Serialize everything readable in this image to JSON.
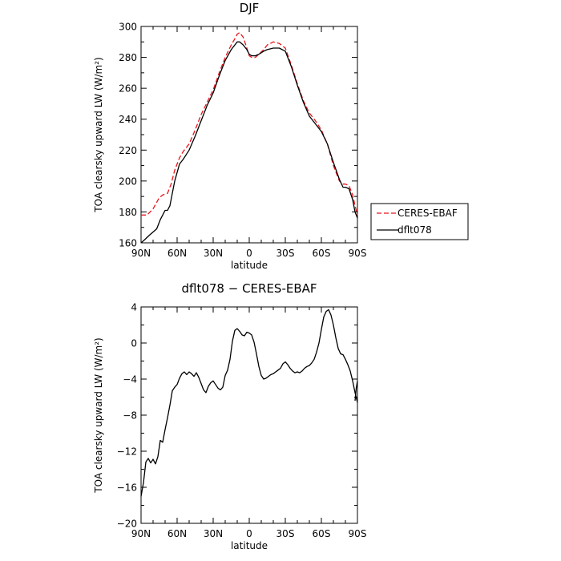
{
  "chart_data": [
    {
      "type": "line",
      "title": "DJF",
      "xlabel": "latitude",
      "ylabel": "TOA clearsky upward LW (W/m²)",
      "ylim": [
        160,
        300
      ],
      "xlim": [
        90,
        -90
      ],
      "grid": false,
      "legend_position": "right",
      "x_ticks": [
        90,
        60,
        30,
        0,
        -30,
        -60,
        -90
      ],
      "x_tick_labels": [
        "90N",
        "60N",
        "30N",
        "0",
        "30S",
        "60S",
        "90S"
      ],
      "y_ticks": [
        160,
        180,
        200,
        220,
        240,
        260,
        280,
        300
      ],
      "y_tick_labels": [
        "160",
        "180",
        "200",
        "220",
        "240",
        "260",
        "280",
        "300"
      ],
      "series": [
        {
          "name": "CERES-EBAF",
          "color": "#e8141c",
          "dash": "dashed",
          "x": [
            90,
            85,
            80,
            75,
            72,
            68,
            65,
            62,
            58,
            55,
            50,
            45,
            40,
            35,
            30,
            25,
            20,
            15,
            12,
            10,
            8,
            5,
            2,
            0,
            -2,
            -5,
            -8,
            -12,
            -15,
            -20,
            -25,
            -30,
            -35,
            -40,
            -45,
            -50,
            -55,
            -60,
            -65,
            -70,
            -75,
            -78,
            -80,
            -83,
            -86,
            -88,
            -90
          ],
          "y": [
            178,
            178,
            182,
            189,
            191,
            192,
            198,
            207,
            215,
            219,
            224,
            233,
            243,
            251,
            259,
            270,
            280,
            288,
            292,
            295,
            296,
            293,
            286,
            281,
            280,
            280,
            282,
            285,
            288,
            290,
            289,
            286,
            275,
            263,
            252,
            244,
            239,
            233,
            224,
            210,
            200,
            198,
            198,
            197,
            191,
            184,
            178
          ]
        },
        {
          "name": "dflt078",
          "color": "#000000",
          "dash": "solid",
          "x": [
            90,
            87,
            83,
            80,
            77,
            74,
            72,
            70,
            68,
            66,
            64,
            62,
            58,
            55,
            50,
            45,
            40,
            35,
            30,
            25,
            20,
            15,
            12,
            10,
            8,
            5,
            2,
            0,
            -2,
            -5,
            -8,
            -12,
            -15,
            -20,
            -25,
            -30,
            -35,
            -40,
            -45,
            -50,
            -55,
            -60,
            -65,
            -70,
            -75,
            -78,
            -80,
            -83,
            -86,
            -88,
            -90
          ],
          "y": [
            160,
            162,
            165,
            167,
            169,
            175,
            178,
            181,
            181,
            184,
            192,
            200,
            211,
            214,
            220,
            229,
            239,
            249,
            257,
            268,
            278,
            285,
            288,
            290,
            290,
            288,
            285,
            282,
            281,
            281,
            282,
            284,
            285,
            286,
            286,
            284,
            274,
            262,
            251,
            242,
            237,
            232,
            224,
            212,
            201,
            196,
            196,
            195,
            188,
            180,
            176
          ]
        }
      ]
    },
    {
      "type": "line",
      "title": "dflt078 − CERES-EBAF",
      "xlabel": "latitude",
      "ylabel": "TOA clearsky upward LW (W/m²)",
      "ylim": [
        -20,
        4
      ],
      "xlim": [
        90,
        -90
      ],
      "grid": false,
      "x_ticks": [
        90,
        60,
        30,
        0,
        -30,
        -60,
        -90
      ],
      "x_tick_labels": [
        "90N",
        "60N",
        "30N",
        "0",
        "30S",
        "60S",
        "90S"
      ],
      "y_ticks": [
        -20,
        -16,
        -12,
        -8,
        -4,
        0,
        4
      ],
      "y_tick_labels": [
        "−20",
        "−16",
        "−12",
        "−8",
        "−4",
        "0",
        "4"
      ],
      "series": [
        {
          "color": "#000000",
          "dash": "solid",
          "x": [
            90,
            88,
            86,
            84,
            82,
            80,
            78,
            76,
            74,
            72,
            70,
            68,
            66,
            64,
            62,
            60,
            58,
            56,
            54,
            52,
            50,
            48,
            46,
            44,
            42,
            40,
            38,
            36,
            34,
            32,
            30,
            28,
            26,
            24,
            22,
            20,
            18,
            16,
            14,
            12,
            10,
            8,
            6,
            4,
            2,
            0,
            -2,
            -4,
            -6,
            -8,
            -10,
            -12,
            -14,
            -16,
            -18,
            -20,
            -22,
            -24,
            -26,
            -28,
            -30,
            -32,
            -34,
            -36,
            -38,
            -40,
            -42,
            -44,
            -46,
            -48,
            -50,
            -52,
            -54,
            -56,
            -58,
            -60,
            -62,
            -64,
            -66,
            -68,
            -70,
            -72,
            -74,
            -76,
            -78,
            -80,
            -82,
            -84,
            -86,
            -88,
            -90
          ],
          "y": [
            -17,
            -15.5,
            -13.2,
            -12.8,
            -13.3,
            -12.9,
            -13.4,
            -12.6,
            -10.8,
            -11.0,
            -9.6,
            -8.3,
            -6.9,
            -5.3,
            -4.9,
            -4.6,
            -3.9,
            -3.4,
            -3.2,
            -3.5,
            -3.2,
            -3.4,
            -3.7,
            -3.3,
            -3.8,
            -4.5,
            -5.2,
            -5.5,
            -4.8,
            -4.4,
            -4.2,
            -4.6,
            -5.0,
            -5.2,
            -4.9,
            -3.6,
            -3.0,
            -1.8,
            0.2,
            1.4,
            1.6,
            1.3,
            0.9,
            0.8,
            1.2,
            1.1,
            0.9,
            0.1,
            -1.2,
            -2.6,
            -3.6,
            -4.0,
            -3.9,
            -3.7,
            -3.5,
            -3.4,
            -3.2,
            -3.0,
            -2.8,
            -2.3,
            -2.1,
            -2.4,
            -2.8,
            -3.1,
            -3.3,
            -3.2,
            -3.3,
            -3.1,
            -2.8,
            -2.6,
            -2.5,
            -2.2,
            -1.8,
            -1.0,
            0.0,
            1.5,
            2.9,
            3.5,
            3.7,
            3.1,
            2.0,
            0.6,
            -0.6,
            -1.2,
            -1.3,
            -1.8,
            -2.4,
            -3.1,
            -4.2,
            -5.5,
            -6.6
          ]
        },
        {
          "color": "#000000",
          "dash": "solid",
          "x": [
            -88,
            -89,
            -90
          ],
          "y": [
            -6.4,
            -5.0,
            -4.2
          ]
        }
      ]
    }
  ]
}
